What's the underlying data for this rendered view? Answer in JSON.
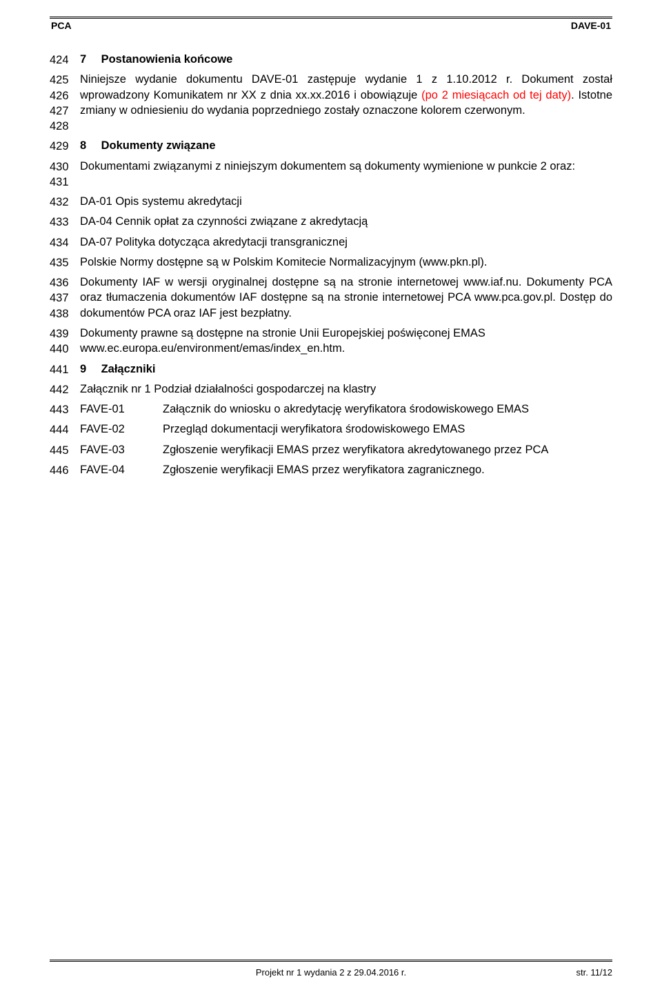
{
  "header": {
    "left": "PCA",
    "right": "DAVE-01"
  },
  "lines": {
    "l424_num": "424",
    "l424_h_num": "7",
    "l424_h_title": "Postanowienia końcowe",
    "l425_num": "425",
    "l426_num": "426",
    "l427_num": "427",
    "l428_num": "428",
    "p1a": "Niniejsze wydanie dokumentu DAVE-01 zastępuje wydanie 1 z 1.10.2012 r. Dokument został wprowadzony Komunikatem nr XX z dnia xx.xx.2016 i obowiązuje ",
    "p1b_red": "(po 2 miesiącach od tej daty)",
    "p1c": ". Istotne zmiany w odniesieniu do wydania poprzedniego zostały oznaczone kolorem czerwonym.",
    "l429_num": "429",
    "l429_h_num": "8",
    "l429_h_title": "Dokumenty związane",
    "l430_num": "430",
    "l431_num": "431",
    "p2": "Dokumentami związanymi z niniejszym dokumentem są dokumenty wymienione w punkcie 2 oraz:",
    "l432_num": "432",
    "l432_txt": "DA-01 Opis systemu akredytacji",
    "l433_num": "433",
    "l433_txt": "DA-04 Cennik opłat za czynności związane z akredytacją",
    "l434_num": "434",
    "l434_txt": "DA-07 Polityka dotycząca akredytacji transgranicznej",
    "l435_num": "435",
    "l435_txt": "Polskie Normy dostępne są w Polskim Komitecie Normalizacyjnym (www.pkn.pl).",
    "l436_num": "436",
    "l437_num": "437",
    "l438_num": "438",
    "p3": "Dokumenty IAF w wersji oryginalnej dostępne są na stronie internetowej www.iaf.nu. Dokumenty PCA oraz tłumaczenia dokumentów IAF dostępne są na stronie internetowej PCA www.pca.gov.pl. Dostęp do dokumentów PCA oraz IAF jest bezpłatny.",
    "l439_num": "439",
    "l440_num": "440",
    "p4a": "Dokumenty prawne są dostępne na stronie Unii Europejskiej poświęconej EMAS",
    "p4b": "www.ec.europa.eu/environment/emas/index_en.htm.",
    "l441_num": "441",
    "l441_h_num": "9",
    "l441_h_title": "Załączniki",
    "l442_num": "442",
    "l442_txt": "Załącznik nr 1 Podział działalności gospodarczej na klastry",
    "l443_num": "443",
    "l443_code": "FAVE-01",
    "l443_desc": "Załącznik do wniosku o akredytację weryfikatora środowiskowego EMAS",
    "l444_num": "444",
    "l444_code": "FAVE-02",
    "l444_desc": "Przegląd dokumentacji weryfikatora środowiskowego EMAS",
    "l445_num": "445",
    "l445_code": "FAVE-03",
    "l445_desc": "Zgłoszenie weryfikacji EMAS przez weryfikatora akredytowanego przez PCA",
    "l446_num": "446",
    "l446_code": "FAVE-04",
    "l446_desc": "Zgłoszenie weryfikacji EMAS przez weryfikatora zagranicznego."
  },
  "footer": {
    "center": "Projekt nr 1 wydania 2 z 29.04.2016 r.",
    "right": "str. 11/12"
  },
  "colors": {
    "text": "#000000",
    "highlight": "#ff0000",
    "background": "#ffffff"
  }
}
